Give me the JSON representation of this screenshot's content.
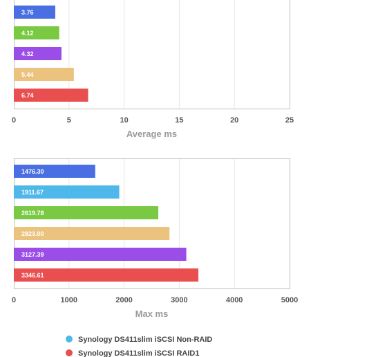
{
  "chart_data": [
    {
      "type": "bar",
      "orientation": "horizontal",
      "xlabel": "Average ms",
      "xlim": [
        0,
        25
      ],
      "xticks": [
        0,
        5,
        10,
        15,
        20,
        25
      ],
      "grid": true,
      "bars": [
        {
          "value": 3.76,
          "label": "3.76",
          "color": "#4a6fe3"
        },
        {
          "value": 4.12,
          "label": "4.12",
          "color": "#7ac943"
        },
        {
          "value": 4.32,
          "label": "4.32",
          "color": "#9b4de8"
        },
        {
          "value": 5.44,
          "label": "5.44",
          "color": "#ecc27f"
        },
        {
          "value": 6.74,
          "label": "6.74",
          "color": "#ea4f50"
        }
      ]
    },
    {
      "type": "bar",
      "orientation": "horizontal",
      "xlabel": "Max ms",
      "xlim": [
        0,
        5000
      ],
      "xticks": [
        0,
        1000,
        2000,
        3000,
        4000,
        5000
      ],
      "grid": true,
      "bars": [
        {
          "value": 1476.3,
          "label": "1476.30",
          "color": "#4a6fe3"
        },
        {
          "value": 1911.67,
          "label": "1911.67",
          "color": "#4fb8ea"
        },
        {
          "value": 2619.78,
          "label": "2619.78",
          "color": "#7ac943"
        },
        {
          "value": 2823.0,
          "label": "2823.00",
          "color": "#ecc27f"
        },
        {
          "value": 3127.39,
          "label": "3127.39",
          "color": "#9b4de8"
        },
        {
          "value": 3346.61,
          "label": "3346.61",
          "color": "#ea4f50"
        }
      ]
    }
  ],
  "legend": [
    {
      "label": "Synology DS411slim iSCSI Non-RAID",
      "color": "#4fb8ea"
    },
    {
      "label": "Synology DS411slim iSCSI RAID1",
      "color": "#ea4f50"
    }
  ]
}
